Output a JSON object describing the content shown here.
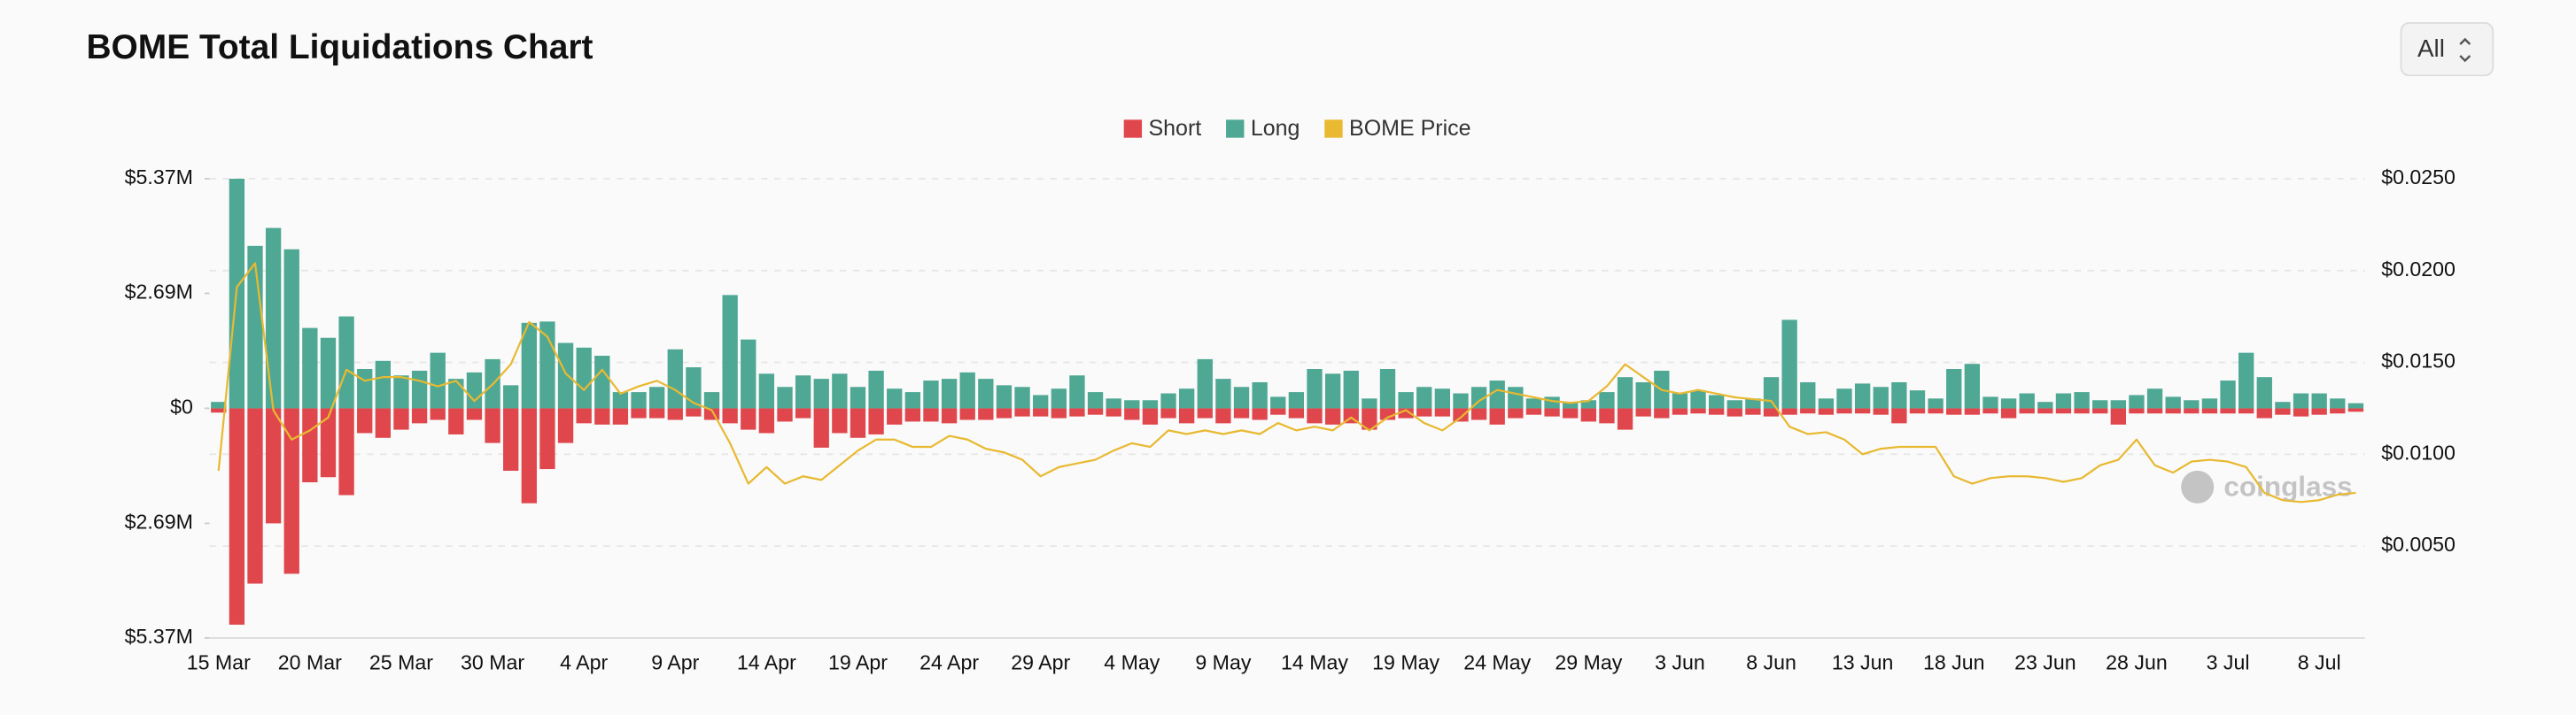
{
  "title": "BOME Total Liquidations Chart",
  "range_selector": "All",
  "watermark": "coinglass",
  "chart_data": {
    "type": "bar",
    "grid": true,
    "legend": "top",
    "categories": [
      "15 Mar",
      null,
      null,
      null,
      null,
      "20 Mar",
      null,
      null,
      null,
      null,
      "25 Mar",
      null,
      null,
      null,
      null,
      "30 Mar",
      null,
      null,
      null,
      null,
      "4 Apr",
      null,
      null,
      null,
      null,
      "9 Apr",
      null,
      null,
      null,
      null,
      "14 Apr",
      null,
      null,
      null,
      null,
      "19 Apr",
      null,
      null,
      null,
      null,
      "24 Apr",
      null,
      null,
      null,
      null,
      "29 Apr",
      null,
      null,
      null,
      null,
      "4 May",
      null,
      null,
      null,
      null,
      "9 May",
      null,
      null,
      null,
      null,
      "14 May",
      null,
      null,
      null,
      null,
      "19 May",
      null,
      null,
      null,
      null,
      "24 May",
      null,
      null,
      null,
      null,
      "29 May",
      null,
      null,
      null,
      null,
      "3 Jun",
      null,
      null,
      null,
      null,
      "8 Jun",
      null,
      null,
      null,
      null,
      "13 Jun",
      null,
      null,
      null,
      null,
      "18 Jun",
      null,
      null,
      null,
      null,
      "23 Jun",
      null,
      null,
      null,
      null,
      "28 Jun",
      null,
      null,
      null,
      null,
      "3 Jul",
      null,
      null,
      null,
      null,
      "8 Jul",
      null,
      null
    ],
    "ylim": [
      -5370000,
      5370000
    ],
    "yticks": [
      {
        "value": 5370000,
        "label": "$5.37M"
      },
      {
        "value": 2690000,
        "label": "$2.69M"
      },
      {
        "value": 0,
        "label": "$0"
      },
      {
        "value": -2690000,
        "label": "$2.69M"
      },
      {
        "value": -5370000,
        "label": "$5.37M"
      }
    ],
    "y2lim": [
      0,
      0.025
    ],
    "y2ticks": [
      {
        "value": 0.025,
        "label": "$0.0250"
      },
      {
        "value": 0.02,
        "label": "$0.0200"
      },
      {
        "value": 0.015,
        "label": "$0.0150"
      },
      {
        "value": 0.01,
        "label": "$0.0100"
      },
      {
        "value": 0.005,
        "label": "$0.0050"
      }
    ],
    "series": [
      {
        "name": "Short",
        "color": "#e0474c",
        "type": "bar",
        "values": [
          -100000,
          -5060000,
          -4100000,
          -2690000,
          -3870000,
          -1730000,
          -1610000,
          -2030000,
          -580000,
          -690000,
          -500000,
          -350000,
          -270000,
          -610000,
          -270000,
          -810000,
          -1460000,
          -2220000,
          -1420000,
          -810000,
          -350000,
          -380000,
          -380000,
          -230000,
          -230000,
          -270000,
          -190000,
          -270000,
          -350000,
          -500000,
          -580000,
          -310000,
          -230000,
          -920000,
          -580000,
          -690000,
          -610000,
          -380000,
          -310000,
          -310000,
          -350000,
          -270000,
          -270000,
          -230000,
          -190000,
          -190000,
          -230000,
          -190000,
          -150000,
          -190000,
          -270000,
          -380000,
          -230000,
          -350000,
          -230000,
          -350000,
          -230000,
          -270000,
          -150000,
          -230000,
          -350000,
          -380000,
          -350000,
          -500000,
          -270000,
          -230000,
          -190000,
          -190000,
          -310000,
          -270000,
          -380000,
          -230000,
          -150000,
          -190000,
          -230000,
          -310000,
          -350000,
          -500000,
          -190000,
          -230000,
          -150000,
          -120000,
          -150000,
          -190000,
          -150000,
          -190000,
          -150000,
          -120000,
          -150000,
          -120000,
          -120000,
          -150000,
          -350000,
          -120000,
          -120000,
          -150000,
          -150000,
          -120000,
          -230000,
          -120000,
          -120000,
          -120000,
          -120000,
          -120000,
          -380000,
          -120000,
          -120000,
          -120000,
          -120000,
          -120000,
          -120000,
          -120000,
          -230000,
          -150000,
          -190000,
          -150000,
          -120000,
          -80000
        ]
      },
      {
        "name": "Long",
        "color": "#4fa894",
        "type": "bar",
        "values": [
          150000,
          5370000,
          3800000,
          4220000,
          3720000,
          1880000,
          1650000,
          2150000,
          920000,
          1110000,
          770000,
          880000,
          1300000,
          690000,
          840000,
          1150000,
          540000,
          2000000,
          2030000,
          1530000,
          1420000,
          1230000,
          380000,
          380000,
          500000,
          1380000,
          960000,
          380000,
          2650000,
          1610000,
          810000,
          500000,
          770000,
          690000,
          810000,
          500000,
          880000,
          460000,
          380000,
          650000,
          690000,
          840000,
          690000,
          540000,
          500000,
          310000,
          460000,
          770000,
          380000,
          230000,
          190000,
          190000,
          350000,
          460000,
          1150000,
          690000,
          500000,
          610000,
          270000,
          380000,
          920000,
          810000,
          880000,
          230000,
          920000,
          380000,
          500000,
          460000,
          350000,
          500000,
          650000,
          500000,
          230000,
          270000,
          150000,
          190000,
          380000,
          730000,
          610000,
          880000,
          350000,
          420000,
          310000,
          190000,
          230000,
          730000,
          2070000,
          610000,
          230000,
          460000,
          580000,
          500000,
          610000,
          420000,
          230000,
          920000,
          1040000,
          270000,
          230000,
          350000,
          150000,
          350000,
          380000,
          190000,
          190000,
          310000,
          460000,
          270000,
          190000,
          230000,
          650000,
          1300000,
          730000,
          150000,
          350000,
          350000,
          230000,
          120000
        ]
      },
      {
        "name": "BOME Price",
        "color": "#e8b931",
        "type": "line",
        "axis": "y2",
        "values": [
          0.0091,
          0.0191,
          0.0204,
          0.0124,
          0.0108,
          0.0113,
          0.012,
          0.0146,
          0.014,
          0.0142,
          0.0142,
          0.014,
          0.0137,
          0.014,
          0.0129,
          0.0138,
          0.0149,
          0.0172,
          0.0164,
          0.0144,
          0.0135,
          0.0146,
          0.0133,
          0.0137,
          0.014,
          0.0135,
          0.0128,
          0.0124,
          0.0106,
          0.0084,
          0.0093,
          0.0084,
          0.0088,
          0.0086,
          0.0094,
          0.0102,
          0.0108,
          0.0108,
          0.0104,
          0.0104,
          0.011,
          0.0108,
          0.0103,
          0.0101,
          0.0097,
          0.0088,
          0.0093,
          0.0095,
          0.0097,
          0.0102,
          0.0106,
          0.0104,
          0.0113,
          0.0111,
          0.0113,
          0.0111,
          0.0113,
          0.0111,
          0.0117,
          0.0113,
          0.0115,
          0.0113,
          0.012,
          0.0113,
          0.012,
          0.0124,
          0.0117,
          0.0113,
          0.012,
          0.0129,
          0.0135,
          0.0133,
          0.0131,
          0.0129,
          0.0128,
          0.0129,
          0.0137,
          0.0149,
          0.0142,
          0.0135,
          0.0133,
          0.0135,
          0.0133,
          0.0131,
          0.013,
          0.0129,
          0.0115,
          0.0111,
          0.0112,
          0.0108,
          0.01,
          0.0103,
          0.0104,
          0.0104,
          0.0104,
          0.0088,
          0.0084,
          0.0087,
          0.0088,
          0.0088,
          0.0087,
          0.0085,
          0.0087,
          0.0094,
          0.0097,
          0.0108,
          0.0094,
          0.009,
          0.0096,
          0.0097,
          0.0096,
          0.0093,
          0.0079,
          0.0075,
          0.0074,
          0.0075,
          0.0078,
          0.0079
        ]
      }
    ]
  }
}
